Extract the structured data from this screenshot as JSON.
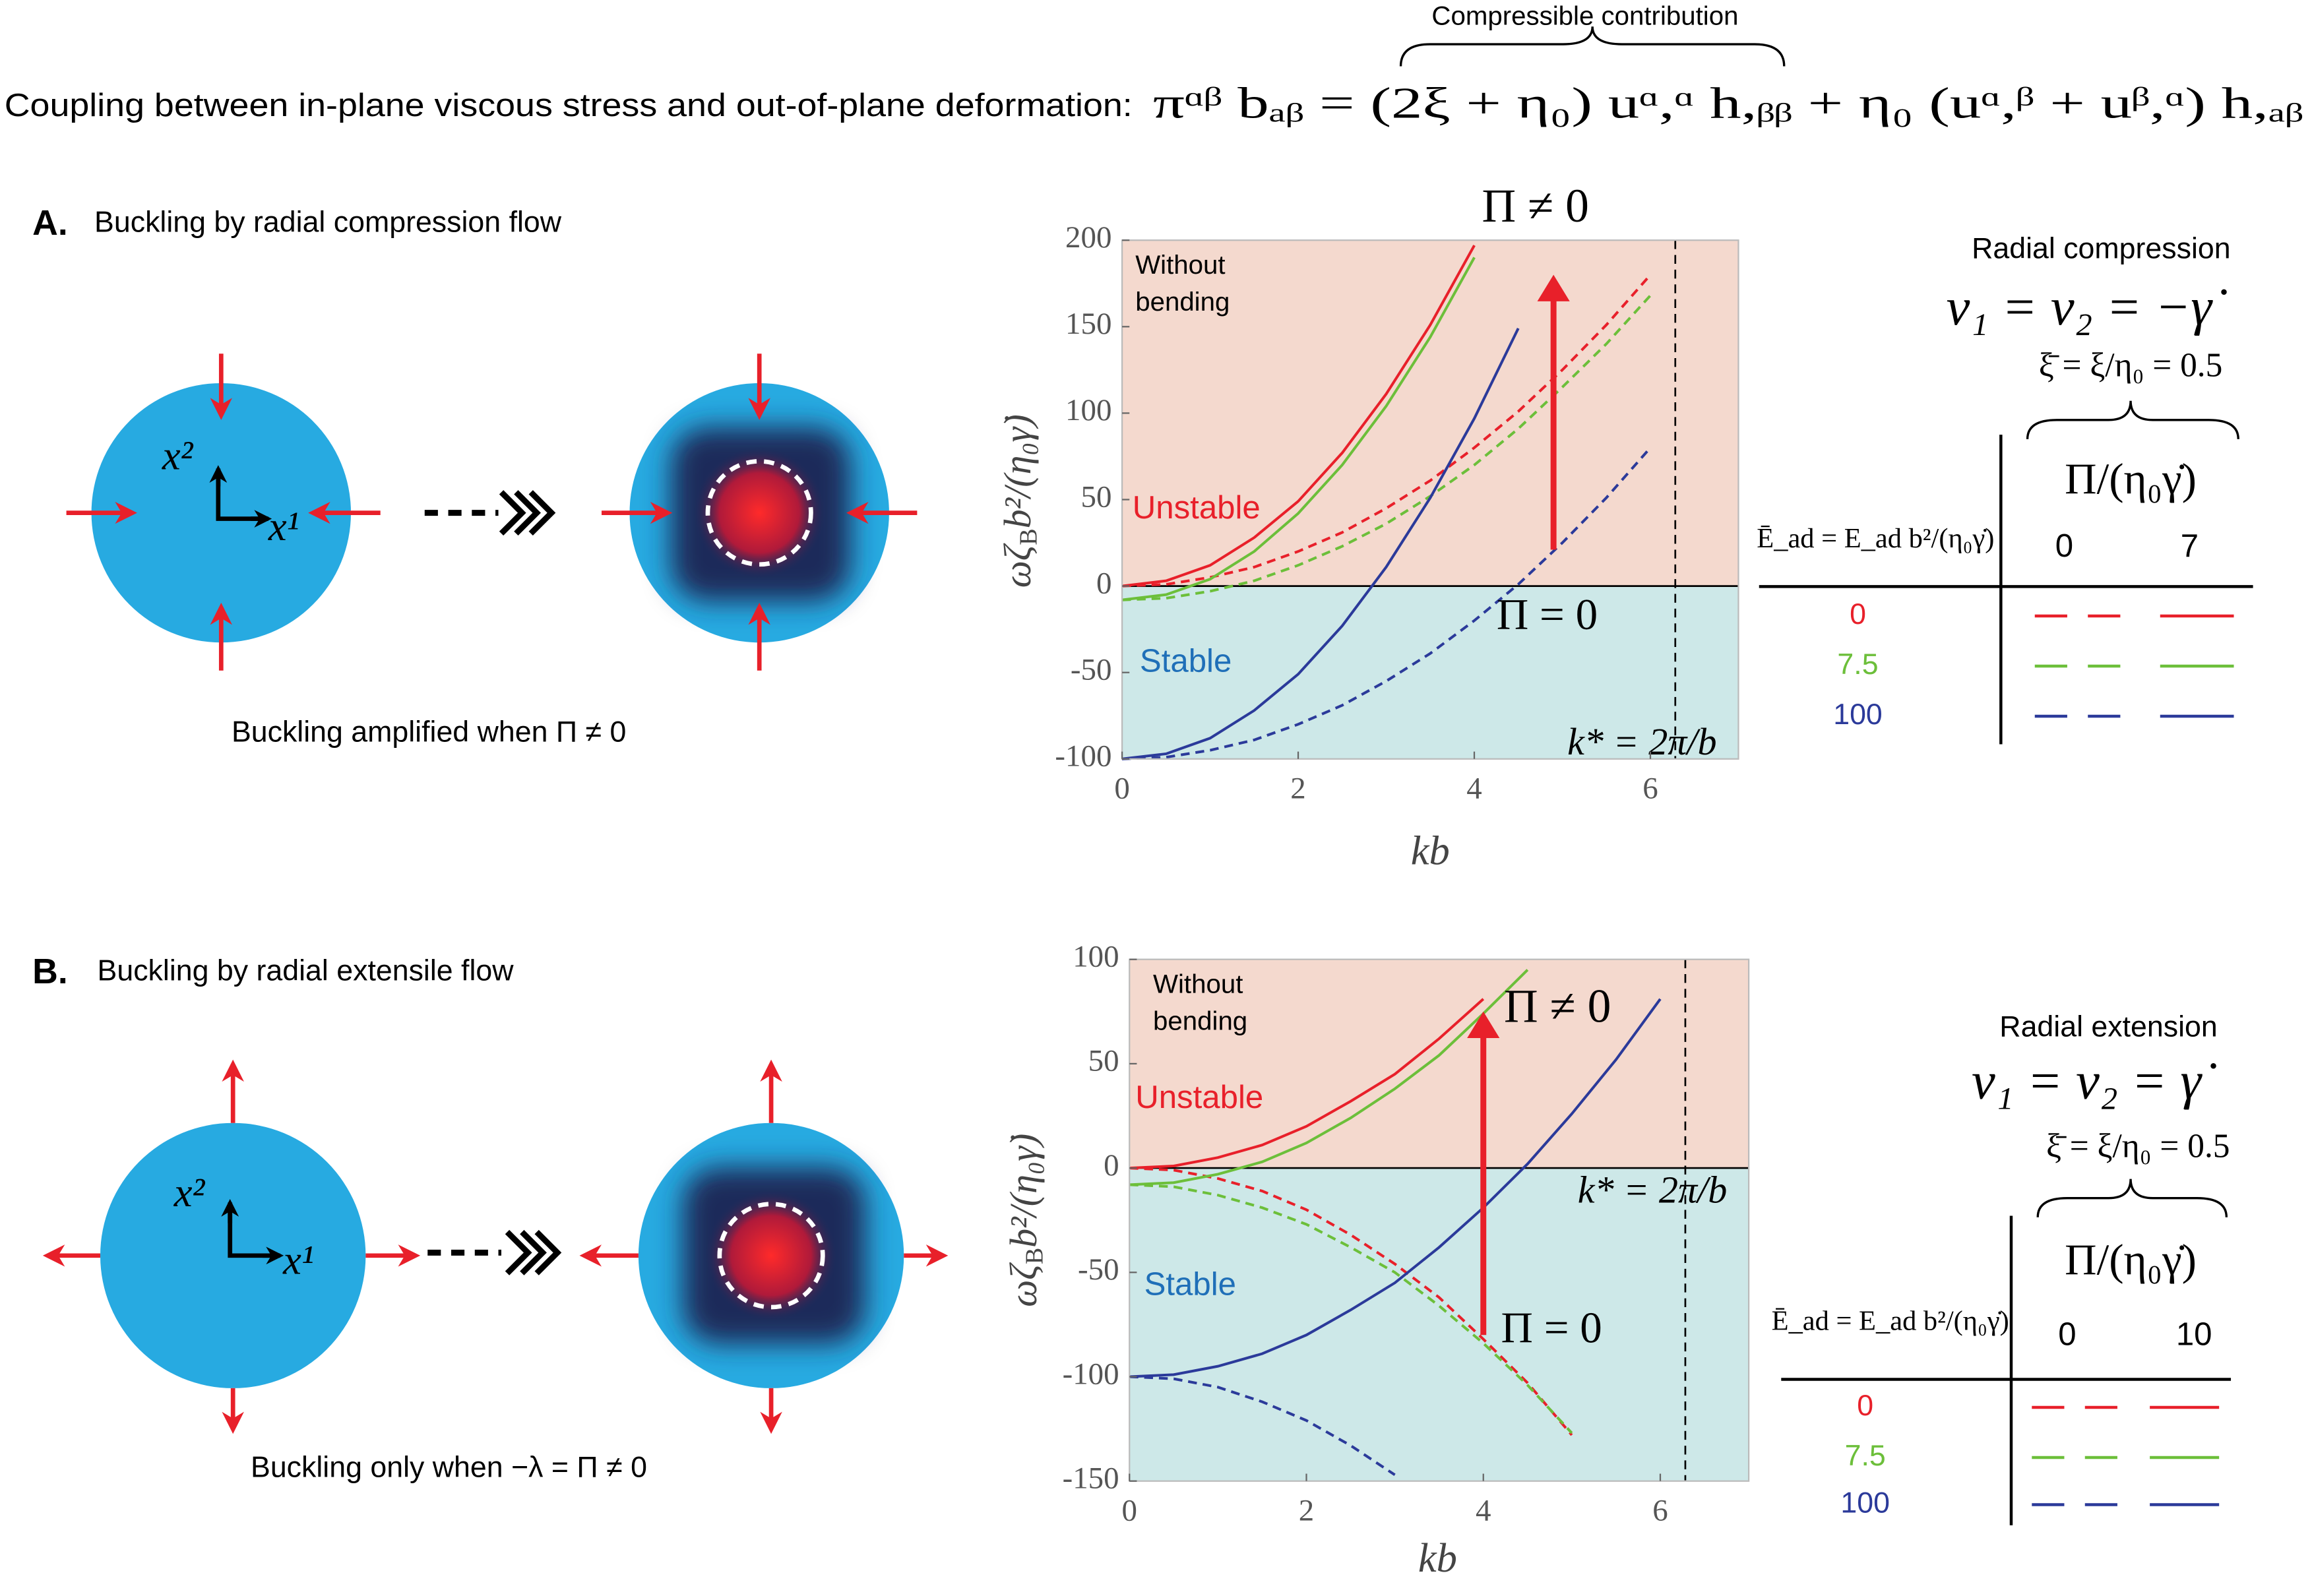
{
  "header": {
    "annotation": "Compressible contribution",
    "text": "Coupling between in-plane viscous stress and out-of-plane deformation:",
    "equation": "πᵅᵝ bₐᵦ = (2ξ + η₀) uᵅ,ᵅ h,ᵦᵦ + η₀ (uᵅ,ᵝ + uᵝ,ᵅ) h,ₐᵦ"
  },
  "panels": [
    {
      "label": "A.",
      "title": "Buckling by radial compression flow",
      "caption": "Buckling amplified when Π ≠ 0",
      "axis_labels": [
        "x²",
        "x¹"
      ]
    },
    {
      "label": "B.",
      "title": "Buckling by radial extensile flow",
      "caption": "Buckling only when −λ = Π ≠ 0",
      "axis_labels": [
        "x²",
        "x¹"
      ]
    }
  ],
  "chart_data": [
    {
      "type": "line",
      "xlabel": "kb",
      "ylabel": [
        "ωζ",
        "B",
        "b²/(η₀γ̇)"
      ],
      "xlim": [
        0,
        7
      ],
      "xticks": [
        0,
        2,
        4,
        6
      ],
      "ylim": [
        -100,
        200
      ],
      "yticks": [
        -100,
        -50,
        0,
        50,
        100,
        150,
        200
      ],
      "x": [
        0,
        0.5,
        1,
        1.5,
        2,
        2.5,
        3,
        3.5,
        4,
        4.5,
        5,
        5.5,
        6
      ],
      "region_labels": {
        "without_bending": [
          "Without",
          "bending"
        ],
        "unstable": "Unstable",
        "stable": "Stable"
      },
      "annotations": {
        "pi_nonzero": "Π ≠ 0",
        "pi_zero": "Π = 0",
        "kstar_label": "k* = 2π/b"
      },
      "kstar": 6.283,
      "arrow": {
        "x": 4.9,
        "from": 21,
        "to": 180
      },
      "series": [
        {
          "color": "#e8202a",
          "dashed": true,
          "values": [
            0,
            1,
            5,
            11,
            20,
            31,
            45,
            61,
            80,
            101,
            125,
            151,
            180
          ]
        },
        {
          "color": "#6cbf3a",
          "dashed": true,
          "values": [
            -8,
            -7,
            -3,
            3,
            12,
            23,
            36,
            52,
            70,
            91,
            115,
            140,
            168
          ]
        },
        {
          "color": "#2b3a9a",
          "dashed": true,
          "values": [
            -100,
            -99,
            -95,
            -89,
            -80,
            -69,
            -55,
            -39,
            -20,
            1,
            25,
            51,
            80
          ]
        },
        {
          "color": "#e8202a",
          "dashed": false,
          "values": [
            0,
            3,
            12,
            28,
            49,
            77,
            111,
            151,
            197,
            null,
            null,
            null,
            null
          ]
        },
        {
          "color": "#6cbf3a",
          "dashed": false,
          "values": [
            -8,
            -5,
            4,
            20,
            42,
            70,
            104,
            144,
            190,
            null,
            null,
            null,
            null
          ]
        },
        {
          "color": "#2b3a9a",
          "dashed": false,
          "values": [
            -100,
            -97,
            -88,
            -72,
            -51,
            -23,
            11,
            51,
            97,
            149,
            null,
            null,
            null
          ]
        }
      ],
      "legend": {
        "title": "Radial compression",
        "flow": "ν₁ = ν₂ = −γ̇",
        "xi": "ξ̄ = ξ/η₀ = 0.5",
        "col_header": "Π/(η₀γ̇)",
        "row_header": "Ē_ad = E_ad b²/(η₀γ̇)",
        "columns": [
          "0",
          "7"
        ],
        "rows": [
          "0",
          "7.5",
          "100"
        ]
      }
    },
    {
      "type": "line",
      "xlabel": "kb",
      "ylabel": [
        "ωζ",
        "B",
        "b²/(η₀γ̇)"
      ],
      "xlim": [
        0,
        7
      ],
      "xticks": [
        0,
        2,
        4,
        6
      ],
      "ylim": [
        -150,
        100
      ],
      "yticks": [
        -150,
        -100,
        -50,
        0,
        50,
        100
      ],
      "x": [
        0,
        0.5,
        1,
        1.5,
        2,
        2.5,
        3,
        3.5,
        4,
        4.5,
        5,
        5.5,
        6
      ],
      "region_labels": {
        "without_bending": [
          "Without",
          "bending"
        ],
        "unstable": "Unstable",
        "stable": "Stable"
      },
      "annotations": {
        "pi_nonzero": "Π ≠ 0",
        "pi_zero": "Π = 0",
        "kstar_label": "k* = 2π/b"
      },
      "kstar": 6.283,
      "arrow": {
        "x": 4,
        "from": -80,
        "to": 75
      },
      "series": [
        {
          "color": "#e8202a",
          "dashed": true,
          "values": [
            0,
            -1,
            -5,
            -11,
            -20,
            -32,
            -46,
            -62,
            -82,
            -103,
            -128,
            null,
            null
          ]
        },
        {
          "color": "#6cbf3a",
          "dashed": true,
          "values": [
            -8,
            -9,
            -13,
            -19,
            -27,
            -38,
            -50,
            -66,
            -84,
            -104,
            -127,
            null,
            null
          ]
        },
        {
          "color": "#2b3a9a",
          "dashed": true,
          "values": [
            -100,
            -101,
            -105,
            -112,
            -121,
            -133,
            -147,
            null,
            null,
            null,
            null,
            null,
            null
          ]
        },
        {
          "color": "#e8202a",
          "dashed": false,
          "values": [
            0,
            1,
            5,
            11,
            20,
            32,
            45,
            62,
            81,
            null,
            null,
            null,
            null
          ]
        },
        {
          "color": "#6cbf3a",
          "dashed": false,
          "values": [
            -8,
            -7,
            -3,
            3,
            12,
            24,
            38,
            54,
            74,
            95,
            null,
            null,
            null
          ]
        },
        {
          "color": "#2b3a9a",
          "dashed": false,
          "values": [
            -100,
            -99,
            -95,
            -89,
            -80,
            -68,
            -55,
            -38,
            -19,
            2,
            26,
            52,
            81
          ]
        }
      ],
      "legend": {
        "title": "Radial extension",
        "flow": "ν₁ = ν₂ = γ̇",
        "xi": "ξ̄ = ξ/η₀ = 0.5",
        "col_header": "Π/(η₀γ̇)",
        "row_header": "Ē_ad = E_ad b²/(η₀γ̇)",
        "columns": [
          "0",
          "10"
        ],
        "rows": [
          "0",
          "7.5",
          "100"
        ]
      }
    }
  ]
}
